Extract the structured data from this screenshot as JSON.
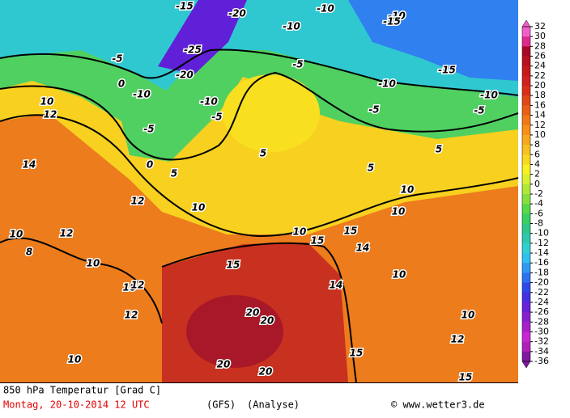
{
  "map": {
    "contour_labels": [
      -15,
      -20,
      -10,
      -10,
      -15,
      -10,
      -25,
      -5,
      -5,
      -15,
      -10,
      -20,
      0,
      -10,
      -10,
      -5,
      -5,
      -10,
      -5,
      -5,
      5,
      0,
      5,
      5,
      5,
      10,
      10,
      10,
      10,
      10,
      10,
      10,
      15,
      15,
      15,
      20,
      20,
      20,
      20,
      15,
      15,
      10,
      10,
      10,
      10,
      12,
      14,
      12,
      12,
      8,
      12,
      12,
      14,
      14,
      12
    ]
  },
  "colorbar": {
    "levels": [
      32,
      30,
      28,
      26,
      24,
      22,
      20,
      18,
      16,
      14,
      12,
      10,
      8,
      6,
      4,
      2,
      0,
      -2,
      -4,
      -6,
      -8,
      -10,
      -12,
      -14,
      -16,
      -18,
      -20,
      -22,
      -24,
      -26,
      -28,
      -30,
      -32,
      -34,
      -36
    ],
    "colors": [
      "#f060c8",
      "#e02890",
      "#a80828",
      "#b81020",
      "#c81818",
      "#d02020",
      "#d83018",
      "#e04818",
      "#e86018",
      "#f07818",
      "#f89018",
      "#f8a820",
      "#f8c020",
      "#f8d820",
      "#f8f020",
      "#d8f030",
      "#b0e838",
      "#88e040",
      "#58d848",
      "#38d060",
      "#30c888",
      "#30c8b0",
      "#30d0d0",
      "#30c0f0",
      "#3098f0",
      "#3070f0",
      "#3048e8",
      "#4830e0",
      "#6820d8",
      "#8820d0",
      "#a820c8",
      "#c828d0",
      "#b020b8",
      "#8018a0"
    ]
  },
  "footer": {
    "title": "850 hPa Temperatur [Grad C]",
    "date": "Montag, 20-10-2014  12 UTC",
    "model": "(GFS)",
    "run": "(Analyse)",
    "credit": "© www.wetter3.de"
  }
}
